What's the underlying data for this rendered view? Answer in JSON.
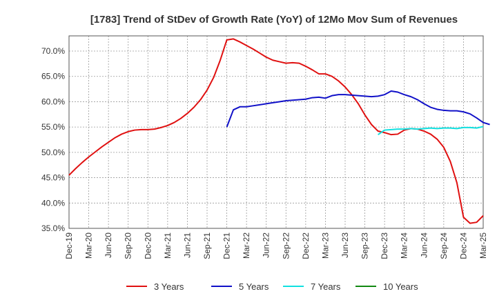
{
  "chart_data": {
    "type": "line",
    "title": "[1783]  Trend of StDev of Growth Rate (YoY) of 12Mo Mov Sum of Revenues",
    "xlabel": "",
    "ylabel": "",
    "ylim": [
      35,
      73
    ],
    "y_ticks": [
      35,
      40,
      45,
      50,
      55,
      60,
      65,
      70
    ],
    "y_tick_labels": [
      "35.0%",
      "40.0%",
      "45.0%",
      "50.0%",
      "55.0%",
      "60.0%",
      "65.0%",
      "70.0%"
    ],
    "x_tick_labels": [
      "Dec-19",
      "Mar-20",
      "Jun-20",
      "Sep-20",
      "Dec-20",
      "Mar-21",
      "Jun-21",
      "Sep-21",
      "Dec-21",
      "Mar-22",
      "Jun-22",
      "Sep-22",
      "Dec-22",
      "Mar-23",
      "Jun-23",
      "Sep-23",
      "Dec-23",
      "Mar-24",
      "Jun-24",
      "Sep-24",
      "Dec-24",
      "Mar-25"
    ],
    "x_count_months": 63,
    "grid": true,
    "legend_position": "bottom",
    "series": [
      {
        "name": "3 Years",
        "color": "#e01010",
        "start_index": 0,
        "values": [
          45.5,
          46.8,
          48.0,
          49.1,
          50.1,
          51.1,
          52.0,
          52.9,
          53.6,
          54.1,
          54.4,
          54.5,
          54.5,
          54.6,
          54.9,
          55.3,
          55.9,
          56.7,
          57.7,
          58.9,
          60.4,
          62.3,
          64.8,
          68.2,
          72.2,
          72.4,
          71.8,
          71.1,
          70.4,
          69.6,
          68.8,
          68.2,
          67.9,
          67.6,
          67.7,
          67.6,
          67.0,
          66.3,
          65.5,
          65.5,
          65.0,
          64.1,
          62.9,
          61.4,
          59.6,
          57.4,
          55.5,
          54.2,
          53.9,
          53.5,
          53.6,
          54.4,
          54.7,
          54.6,
          54.2,
          53.6,
          52.6,
          51.0,
          48.2,
          44.0,
          37.2,
          36.0,
          36.2,
          37.5
        ]
      },
      {
        "name": "5 Years",
        "color": "#1010c8",
        "start_index": 24,
        "values": [
          55.0,
          58.4,
          59.0,
          59.0,
          59.2,
          59.4,
          59.6,
          59.8,
          60.0,
          60.2,
          60.3,
          60.4,
          60.5,
          60.8,
          60.9,
          60.7,
          61.2,
          61.4,
          61.4,
          61.3,
          61.2,
          61.1,
          61.0,
          61.1,
          61.4,
          62.1,
          61.9,
          61.4,
          61.0,
          60.4,
          59.6,
          58.9,
          58.5,
          58.3,
          58.2,
          58.2,
          58.0,
          57.6,
          56.8,
          55.9,
          55.5
        ]
      },
      {
        "name": "7 Years",
        "color": "#10e0e0",
        "start_index": 47,
        "values": [
          53.5,
          54.4,
          54.5,
          54.6,
          54.6,
          54.7,
          54.6,
          54.7,
          54.8,
          54.7,
          54.8,
          54.8,
          54.7,
          54.9,
          54.9,
          54.8,
          55.1
        ]
      },
      {
        "name": "10 Years",
        "color": "#118811",
        "start_index": 0,
        "values": []
      }
    ]
  }
}
